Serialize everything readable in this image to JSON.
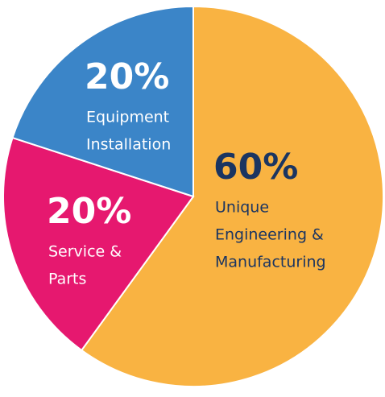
{
  "chart_data": {
    "type": "pie",
    "categories": [
      [
        "Unique",
        "Engineering &",
        "Manufacturing"
      ],
      [
        "Service &",
        "Parts"
      ],
      [
        "Equipment",
        "Installation"
      ]
    ],
    "values": [
      60,
      20,
      20
    ],
    "value_labels": [
      "60%",
      "20%",
      "20%"
    ],
    "colors": [
      "#f9b342",
      "#e6186f",
      "#3b85c8"
    ],
    "label_colors": [
      "#1b3561",
      "#ffffff",
      "#ffffff"
    ]
  }
}
